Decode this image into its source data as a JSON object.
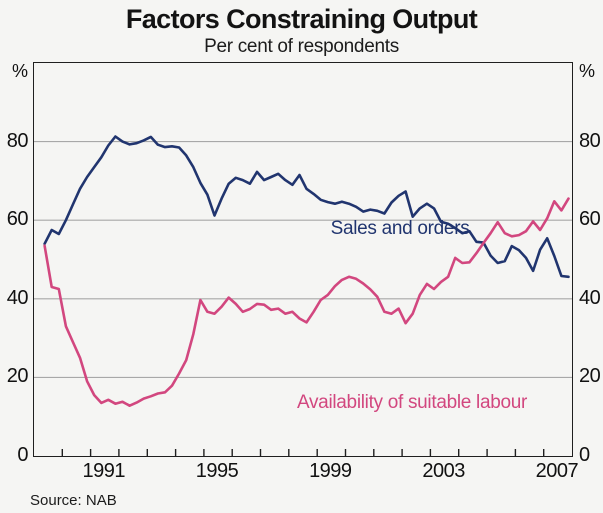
{
  "title": "Factors Constraining Output",
  "subtitle": "Per cent of respondents",
  "source": "Source: NAB",
  "axes": {
    "unit_left": "%",
    "unit_right": "%",
    "y_ticks": [
      80,
      60,
      40,
      20,
      0
    ],
    "x_labels": [
      "1991",
      "1995",
      "1999",
      "2003",
      "2007"
    ],
    "x_tick_years": [
      1990,
      1991,
      1992,
      1993,
      1994,
      1995,
      1996,
      1997,
      1998,
      1999,
      2000,
      2001,
      2002,
      2003,
      2004,
      2005,
      2006,
      2007
    ]
  },
  "colors": {
    "sales": "#21356f",
    "labour": "#d2477f",
    "gridline": "#a8a8a8",
    "frame": "#1f1f1f",
    "background": "#f5f5f3"
  },
  "chart_data": {
    "type": "line",
    "title": "Factors Constraining Output",
    "subtitle": "Per cent of respondents",
    "xlabel": "",
    "ylabel": "Per cent of respondents",
    "xlim": [
      1989,
      2008
    ],
    "ylim": [
      0,
      100
    ],
    "gridlines": [
      20,
      40,
      60,
      80
    ],
    "grid": true,
    "legend_position": "inline-annotations",
    "x_start": 1989.375,
    "x_step": 0.25,
    "frequency": "quarterly",
    "series": [
      {
        "name": "Sales and orders",
        "color": "#21356f",
        "values": [
          54,
          57.5,
          56.5,
          60,
          64,
          68,
          71,
          73.5,
          76,
          79,
          81.3,
          80,
          79.3,
          79.6,
          80.3,
          81.2,
          79.2,
          78.6,
          78.8,
          78.5,
          76.5,
          73.5,
          69.5,
          66.5,
          61.2,
          65.5,
          69.3,
          70.8,
          70.2,
          69.3,
          72.3,
          70.2,
          71,
          71.8,
          70.2,
          69,
          71.5,
          68,
          66.7,
          65.2,
          64.6,
          64.2,
          64.7,
          64.2,
          63.4,
          62.2,
          62.7,
          62.4,
          61.7,
          64.5,
          66.2,
          67.3,
          60.9,
          63,
          64.2,
          63,
          59.6,
          59.1,
          58,
          56.7,
          57.2,
          54.5,
          54.3,
          51,
          49.1,
          49.6,
          53.4,
          52.4,
          50.4,
          47.1,
          52.5,
          55.4,
          50.9,
          45.8,
          45.6
        ]
      },
      {
        "name": "Availability of suitable labour",
        "color": "#d2477f",
        "values": [
          53.5,
          43,
          42.5,
          33,
          29,
          25,
          19,
          15.5,
          13.5,
          14.3,
          13.3,
          13.8,
          12.8,
          13.6,
          14.6,
          15.2,
          15.9,
          16.2,
          17.9,
          21,
          24.4,
          31,
          39.7,
          36.7,
          36.2,
          38,
          40.3,
          38.7,
          36.7,
          37.4,
          38.7,
          38.5,
          37.2,
          37.5,
          36.2,
          36.7,
          35,
          34,
          36.7,
          39.7,
          41,
          43.2,
          44.8,
          45.6,
          45.1,
          43.9,
          42.4,
          40.5,
          36.7,
          36.2,
          37.5,
          33.8,
          36.2,
          41,
          43.8,
          42.5,
          44.3,
          45.6,
          50.4,
          49.1,
          49.3,
          51.6,
          54.2,
          56.7,
          59.5,
          56.7,
          55.9,
          56.2,
          57.2,
          59.7,
          57.5,
          60.5,
          64.8,
          62.5,
          65.5
        ]
      }
    ]
  }
}
